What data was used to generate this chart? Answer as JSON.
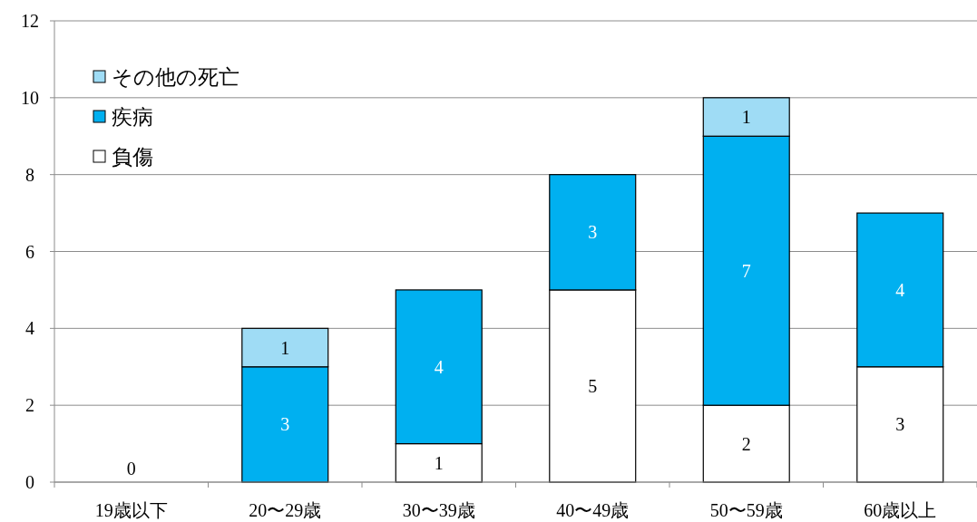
{
  "chart_data": {
    "type": "bar",
    "stacked": true,
    "categories": [
      "19歳以下",
      "20〜29歳",
      "30〜39歳",
      "40〜49歳",
      "50〜59歳",
      "60歳以上"
    ],
    "series": [
      {
        "name": "負傷",
        "color": "#ffffff",
        "values": [
          0,
          0,
          1,
          5,
          2,
          3
        ],
        "value_labels": [
          "0",
          null,
          "1",
          "5",
          "2",
          "3"
        ]
      },
      {
        "name": "疾病",
        "color": "#00b0f0",
        "values": [
          0,
          3,
          4,
          3,
          7,
          4
        ],
        "value_labels": [
          null,
          "3",
          "4",
          "3",
          "7",
          "4"
        ]
      },
      {
        "name": "その他の死亡",
        "color": "#9fdcf5",
        "values": [
          0,
          1,
          0,
          0,
          1,
          0
        ],
        "value_labels": [
          null,
          "1",
          null,
          null,
          "1",
          null
        ]
      }
    ],
    "ylim": [
      0,
      12
    ],
    "yticks": [
      0,
      2,
      4,
      6,
      8,
      10,
      12
    ],
    "grid": "y",
    "legend": "top left"
  }
}
